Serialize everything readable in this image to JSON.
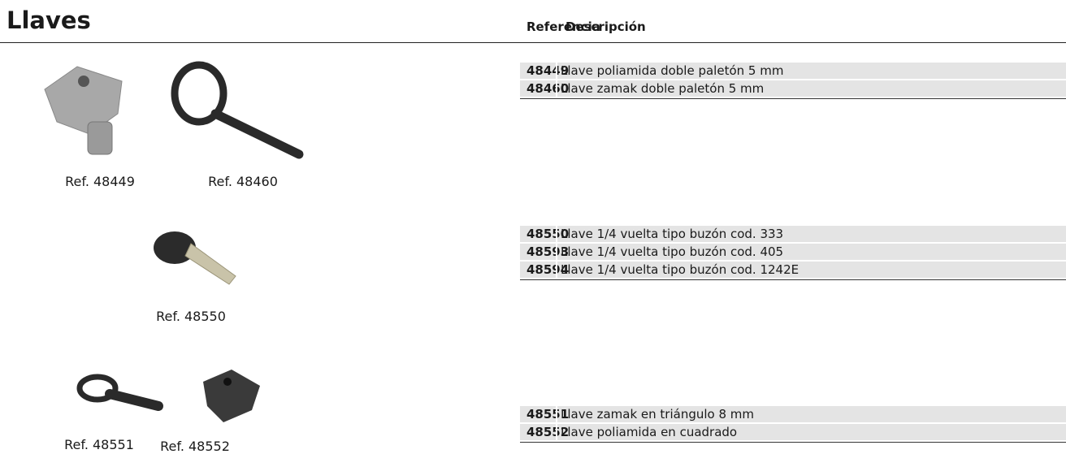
{
  "header": {
    "title": "Llaves",
    "columns": [
      "Referencia",
      "Descripción"
    ]
  },
  "groups": [
    {
      "images": [
        "Ref. 48449",
        "Ref. 48460"
      ],
      "rows": [
        [
          "48449",
          "Llave poliamida doble paletón 5 mm"
        ],
        [
          "48460",
          "Llave zamak doble paletón 5 mm"
        ]
      ]
    },
    {
      "images": [
        "Ref. 48550"
      ],
      "rows": [
        [
          "48550",
          "Llave 1/4 vuelta tipo buzón cod. 333"
        ],
        [
          "48593",
          "Llave 1/4 vuelta tipo buzón cod. 405"
        ],
        [
          "48594",
          "Llave 1/4 vuelta tipo buzón cod. 1242E"
        ]
      ]
    },
    {
      "images": [
        "Ref. 48551",
        "Ref. 48552"
      ],
      "rows": [
        [
          "48551",
          "Llave zamak en triángulo 8 mm"
        ],
        [
          "48552",
          "Llave poliamida en cuadrado"
        ]
      ]
    }
  ]
}
